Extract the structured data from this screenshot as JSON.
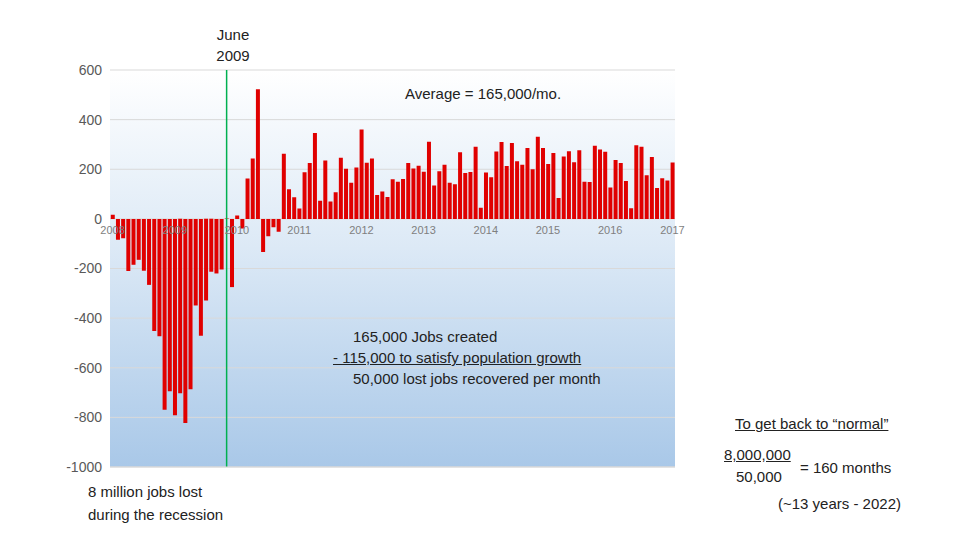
{
  "chart_data": {
    "type": "bar",
    "categories": [
      "2008",
      null,
      null,
      null,
      null,
      null,
      null,
      null,
      null,
      null,
      null,
      null,
      "2009",
      null,
      null,
      null,
      null,
      null,
      null,
      null,
      null,
      null,
      null,
      null,
      "2010",
      null,
      null,
      null,
      null,
      null,
      null,
      null,
      null,
      null,
      null,
      null,
      "2011",
      null,
      null,
      null,
      null,
      null,
      null,
      null,
      null,
      null,
      null,
      null,
      "2012",
      null,
      null,
      null,
      null,
      null,
      null,
      null,
      null,
      null,
      null,
      null,
      "2013",
      null,
      null,
      null,
      null,
      null,
      null,
      null,
      null,
      null,
      null,
      null,
      "2014",
      null,
      null,
      null,
      null,
      null,
      null,
      null,
      null,
      null,
      null,
      null,
      "2015",
      null,
      null,
      null,
      null,
      null,
      null,
      null,
      null,
      null,
      null,
      null,
      "2016",
      null,
      null,
      null,
      null,
      null,
      null,
      null,
      null,
      null,
      null,
      null,
      "2017"
    ],
    "values": [
      17,
      -84,
      -78,
      -210,
      -185,
      -165,
      -209,
      -266,
      -452,
      -473,
      -769,
      -695,
      -791,
      -703,
      -823,
      -687,
      -349,
      -471,
      -329,
      -213,
      -220,
      -204,
      2,
      -275,
      14,
      -39,
      163,
      243,
      522,
      -133,
      -70,
      -34,
      -52,
      262,
      119,
      87,
      42,
      188,
      225,
      346,
      73,
      235,
      70,
      107,
      246,
      202,
      146,
      207,
      360,
      226,
      243,
      96,
      110,
      88,
      160,
      150,
      161,
      225,
      203,
      214,
      190,
      311,
      135,
      192,
      218,
      146,
      140,
      269,
      185,
      189,
      291,
      45,
      187,
      168,
      272,
      310,
      213,
      306,
      232,
      218,
      286,
      200,
      331,
      286,
      221,
      265,
      84,
      251,
      273,
      228,
      277,
      150,
      149,
      295,
      280,
      271,
      126,
      237,
      225,
      153,
      43,
      297,
      291,
      176,
      249,
      124,
      164,
      155,
      227
    ],
    "color": "#e00000",
    "ylim": [
      -1000,
      600
    ],
    "yticks": [
      -1000,
      -800,
      -600,
      -400,
      -200,
      0,
      200,
      400,
      600
    ],
    "grid": true,
    "reference_line": {
      "x": 22,
      "color": "#00b050"
    },
    "annotations": [
      "June 2009",
      "Average = 165,000/mo.",
      "165,000 Jobs created",
      "- 115,000 to satisfy population growth",
      "50,000 lost jobs recovered per month",
      "8 million jobs lost",
      "during the recession",
      "To get back to “normal”",
      "8,000,000",
      "50,000",
      "= 160 months",
      "(~13 years - 2022)"
    ]
  }
}
